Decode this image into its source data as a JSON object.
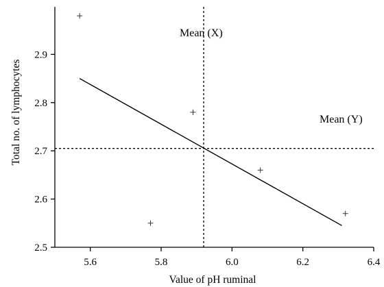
{
  "chart_data": {
    "type": "scatter",
    "xlabel": "Value of pH ruminal",
    "ylabel": "Total no. of lymphocytes",
    "xlim": [
      5.5,
      6.4
    ],
    "ylim": [
      2.5,
      3.0
    ],
    "x_ticks": [
      "5.6",
      "5.8",
      "6.0",
      "6.2",
      "6.4"
    ],
    "y_ticks": [
      "2.5",
      "2.6",
      "2.7",
      "2.8",
      "2.9"
    ],
    "x_tick_values": [
      5.6,
      5.8,
      6.0,
      6.2,
      6.4
    ],
    "y_tick_values": [
      2.5,
      2.6,
      2.7,
      2.8,
      2.9
    ],
    "points": [
      {
        "x": 5.57,
        "y": 2.98
      },
      {
        "x": 5.77,
        "y": 2.55
      },
      {
        "x": 5.89,
        "y": 2.78
      },
      {
        "x": 6.08,
        "y": 2.66
      },
      {
        "x": 6.32,
        "y": 2.57
      }
    ],
    "regression_line": {
      "x": [
        5.57,
        6.31
      ],
      "y": [
        2.85,
        2.545
      ]
    },
    "mean_x": {
      "value": 5.92,
      "label": "Mean (X)"
    },
    "mean_y": {
      "value": 2.705,
      "label": "Mean (Y)"
    },
    "grid": false,
    "legend": "none"
  }
}
